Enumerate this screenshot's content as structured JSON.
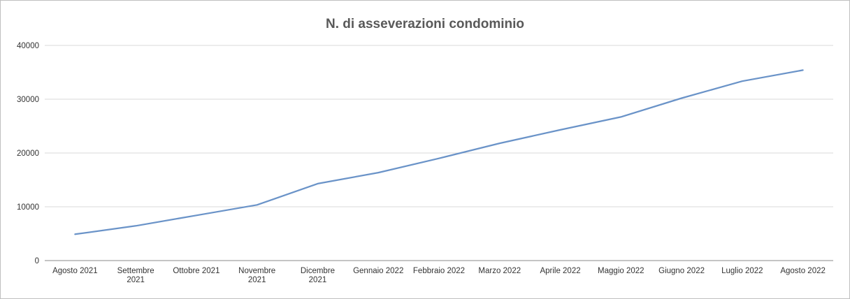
{
  "chart_data": {
    "type": "line",
    "title": "N. di asseverazioni condominio",
    "xlabel": "",
    "ylabel": "",
    "categories": [
      [
        "Agosto 2021"
      ],
      [
        "Settembre",
        "2021"
      ],
      [
        "Ottobre 2021"
      ],
      [
        "Novembre",
        "2021"
      ],
      [
        "Dicembre",
        "2021"
      ],
      [
        "Gennaio 2022"
      ],
      [
        "Febbraio 2022"
      ],
      [
        "Marzo 2022"
      ],
      [
        "Aprile 2022"
      ],
      [
        "Maggio 2022"
      ],
      [
        "Giugno 2022"
      ],
      [
        "Luglio 2022"
      ],
      [
        "Agosto 2022"
      ]
    ],
    "series": [
      {
        "values": [
          4900,
          6450,
          8400,
          10350,
          14300,
          16350,
          19000,
          21800,
          24300,
          26700,
          30200,
          33350,
          35400
        ],
        "color": "#6a93c8"
      }
    ],
    "ylim": [
      0,
      40000
    ],
    "yticks": [
      0,
      10000,
      20000,
      30000,
      40000
    ],
    "grid": true,
    "legend": "none"
  }
}
